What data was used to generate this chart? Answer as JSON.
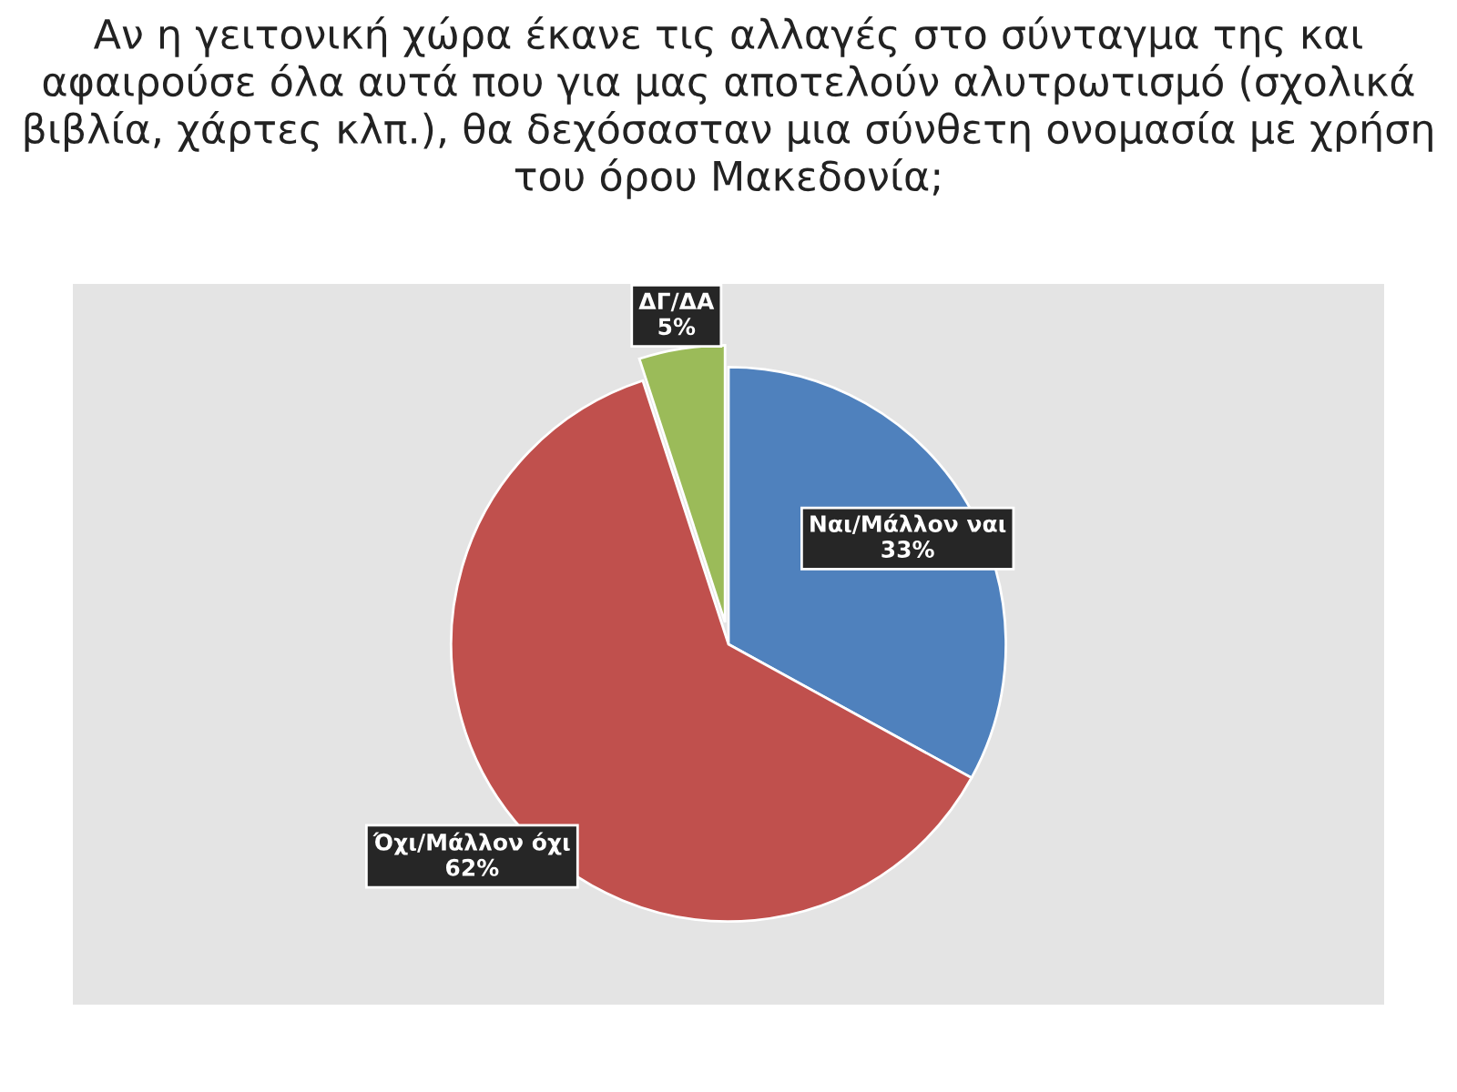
{
  "chart_data": {
    "type": "pie",
    "title": "Αν η γειτονική χώρα έκανε τις αλλαγές στο σύνταγμα της και αφαιρούσε όλα αυτά που για μας αποτελούν αλυτρωτισμό (σχολικά βιβλία, χάρτες κλπ.), θα δεχόσασταν μια σύνθετη ονομασία με χρήση του όρου Μακεδονία;",
    "categories": [
      "Ναι/Μάλλον ναι",
      "Όχι/Μάλλον όχι",
      "ΔΓ/ΔΑ"
    ],
    "values": [
      33,
      62,
      5
    ],
    "colors": [
      "#4f81bd",
      "#c0504d",
      "#9bbb59"
    ],
    "value_labels": [
      "33%",
      "62%",
      "5%"
    ]
  }
}
